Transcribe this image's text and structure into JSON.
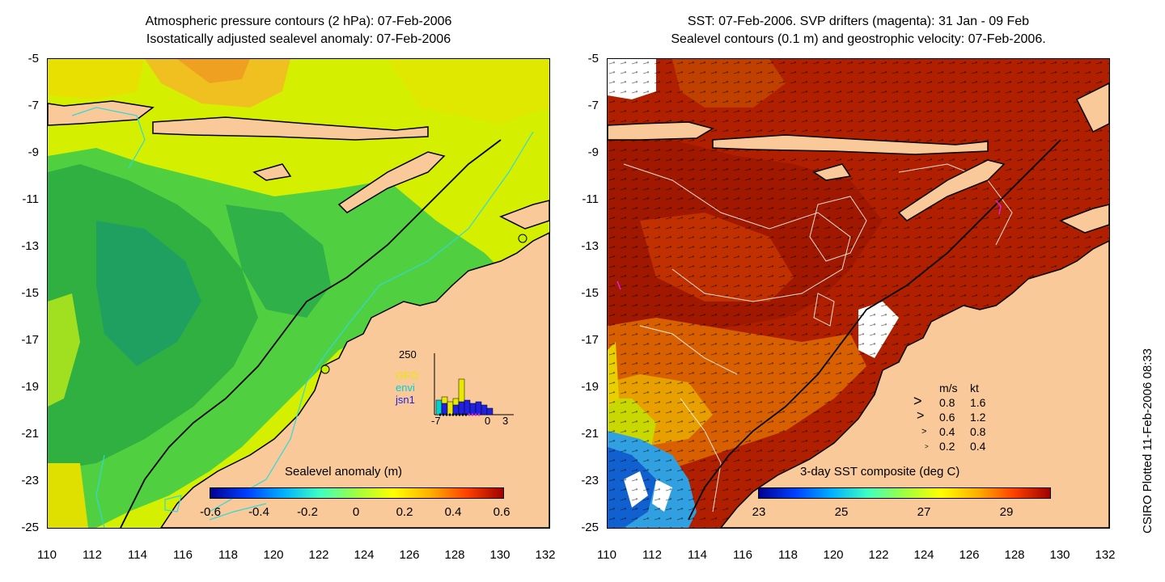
{
  "left": {
    "title_line1": "Atmospheric pressure contours (2 hPa): 07-Feb-2006",
    "title_line2": "Isostatically adjusted sealevel anomaly: 07-Feb-2006",
    "colorbar": {
      "title": "Sealevel anomaly (m)",
      "ticks": [
        "-0.6",
        "-0.4",
        "-0.2",
        "0",
        "0.2",
        "0.4",
        "0.6"
      ]
    },
    "histogram": {
      "ymax_label": "250",
      "x_labels": [
        "-7",
        "0",
        "3"
      ],
      "legend": [
        {
          "name": "GFO",
          "color": "#e8e800"
        },
        {
          "name": "envi",
          "color": "#00d0d0"
        },
        {
          "name": "jsn1",
          "color": "#2020e0"
        }
      ]
    }
  },
  "right": {
    "title_line1": "SST: 07-Feb-2006. SVP drifters (magenta): 31 Jan - 09 Feb",
    "title_line2": "Sealevel contours (0.1 m) and geostrophic velocity: 07-Feb-2006.",
    "colorbar": {
      "title": "3-day SST composite (deg C)",
      "ticks": [
        "23",
        "25",
        "27",
        "29"
      ]
    },
    "velocity_legend": {
      "header_ms": "m/s",
      "header_kt": "kt",
      "rows": [
        {
          "ms": "0.8",
          "kt": "1.6"
        },
        {
          "ms": "0.6",
          "kt": "1.2"
        },
        {
          "ms": "0.4",
          "kt": "0.8"
        },
        {
          "ms": "0.2",
          "kt": "0.4"
        }
      ]
    }
  },
  "axes": {
    "y_ticks": [
      "-5",
      "-7",
      "-9",
      "-11",
      "-13",
      "-15",
      "-17",
      "-19",
      "-21",
      "-23",
      "-25"
    ],
    "x_ticks": [
      "110",
      "112",
      "114",
      "116",
      "118",
      "120",
      "122",
      "124",
      "126",
      "128",
      "130",
      "132"
    ]
  },
  "credit": "CSIRO Plotted 11-Feb-2006 08:33",
  "colors": {
    "land": "#f9c99a",
    "coast": "#000000",
    "cyan_contour": "#30d8d8"
  }
}
